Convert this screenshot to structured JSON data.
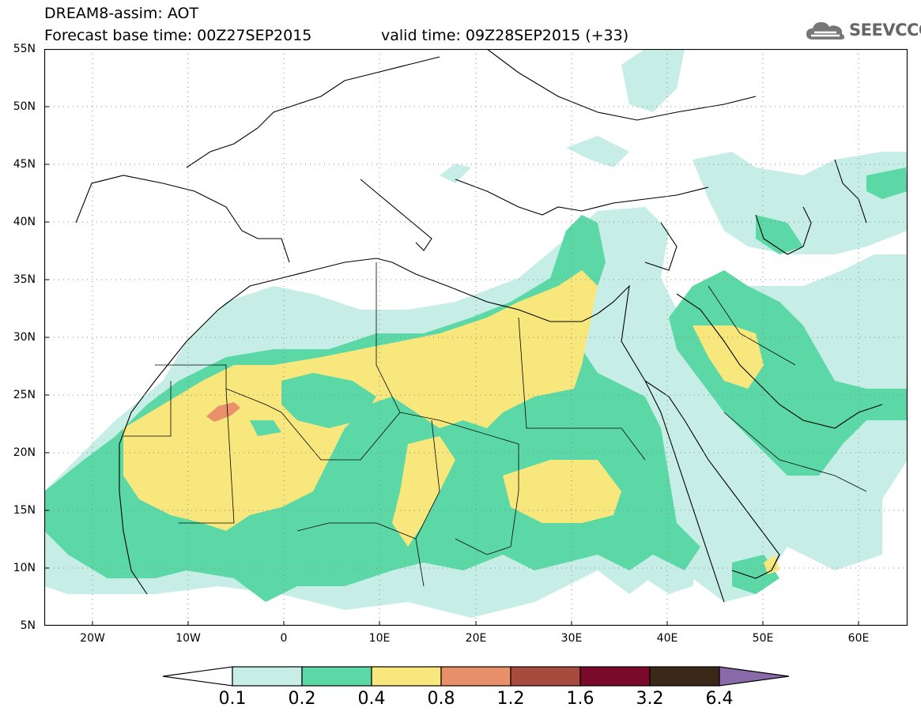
{
  "title": {
    "line1": "DREAM8-assim: AOT",
    "base_time": "Forecast base time: 00Z27SEP2015",
    "valid_time": "valid time: 09Z28SEP2015 (+33)"
  },
  "logo": {
    "text": "SEEVCCC",
    "icon": "cloud-logo-icon"
  },
  "map": {
    "lon_range": [
      -25,
      65
    ],
    "lat_range": [
      5,
      55
    ],
    "lat_labels": [
      "55N",
      "50N",
      "45N",
      "40N",
      "35N",
      "30N",
      "25N",
      "20N",
      "15N",
      "10N",
      "5N"
    ],
    "lon_labels": [
      "20W",
      "10W",
      "0",
      "10E",
      "20E",
      "30E",
      "40E",
      "50E",
      "60E"
    ],
    "grid": "dotted"
  },
  "colorbar": {
    "labels": [
      "0.1",
      "0.2",
      "0.4",
      "0.8",
      "1.2",
      "1.6",
      "3.2",
      "6.4"
    ],
    "colors": [
      "#ffffff",
      "#c6eee6",
      "#5cd8a6",
      "#f7e77c",
      "#e98f6a",
      "#a84a3e",
      "#7a0a2a",
      "#3a2818",
      "#8a6aa8"
    ]
  }
}
